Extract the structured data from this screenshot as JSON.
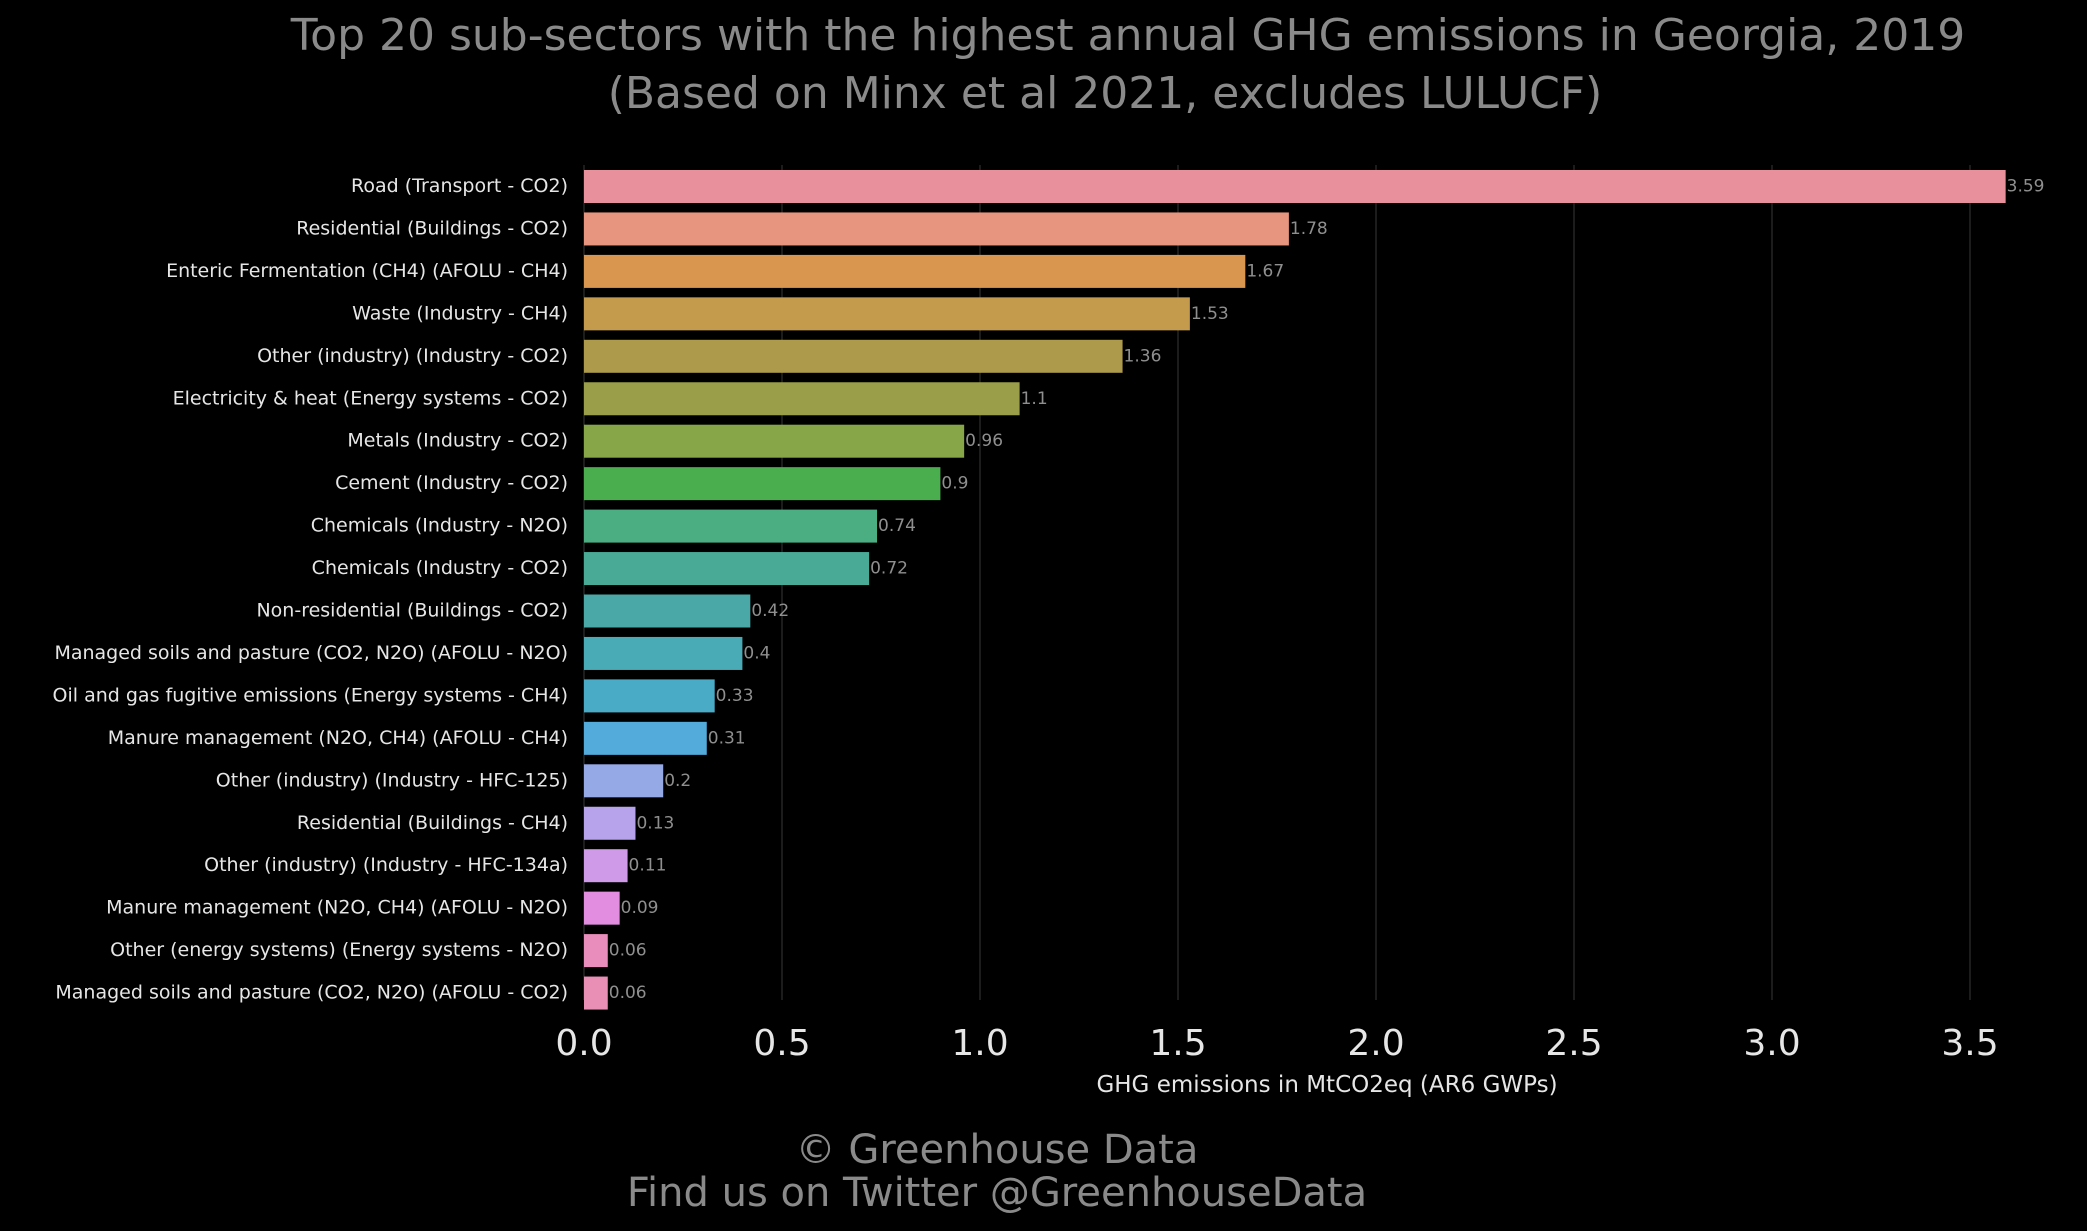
{
  "chart_data": {
    "type": "bar",
    "orientation": "horizontal",
    "title": "Top 20 sub-sectors with the highest annual GHG emissions in Georgia, 2019",
    "subtitle": "(Based on Minx et al 2021, excludes LULUCF)",
    "xlabel": "GHG emissions in MtCO2eq (AR6 GWPs)",
    "ylabel": "",
    "xlim": [
      0,
      3.6
    ],
    "xticks": [
      0.0,
      0.5,
      1.0,
      1.5,
      2.0,
      2.5,
      3.0,
      3.5
    ],
    "xtick_labels": [
      "0.0",
      "0.5",
      "1.0",
      "1.5",
      "2.0",
      "2.5",
      "3.0",
      "3.5"
    ],
    "grid": true,
    "categories": [
      "Road (Transport - CO2)",
      "Residential (Buildings - CO2)",
      "Enteric Fermentation (CH4) (AFOLU - CH4)",
      "Waste (Industry - CH4)",
      "Other (industry) (Industry - CO2)",
      "Electricity & heat (Energy systems - CO2)",
      "Metals (Industry - CO2)",
      "Cement (Industry - CO2)",
      "Chemicals (Industry - N2O)",
      "Chemicals (Industry - CO2)",
      "Non-residential (Buildings - CO2)",
      "Managed soils and pasture (CO2, N2O) (AFOLU - N2O)",
      "Oil and gas fugitive emissions (Energy systems - CH4)",
      "Manure management (N2O, CH4) (AFOLU - CH4)",
      "Other (industry) (Industry - HFC-125)",
      "Residential (Buildings - CH4)",
      "Other (industry) (Industry - HFC-134a)",
      "Manure management (N2O, CH4) (AFOLU - N2O)",
      "Other (energy systems) (Energy systems - N2O)",
      "Managed soils and pasture (CO2, N2O) (AFOLU - CO2)"
    ],
    "values": [
      3.59,
      1.78,
      1.67,
      1.53,
      1.36,
      1.1,
      0.96,
      0.9,
      0.74,
      0.72,
      0.42,
      0.4,
      0.33,
      0.31,
      0.2,
      0.13,
      0.11,
      0.09,
      0.06,
      0.06
    ],
    "value_labels": [
      "3.59",
      "1.78",
      "1.67",
      "1.53",
      "1.36",
      "1.1",
      "0.96",
      "0.9",
      "0.74",
      "0.72",
      "0.42",
      "0.4",
      "0.33",
      "0.31",
      "0.2",
      "0.13",
      "0.11",
      "0.09",
      "0.06",
      "0.06"
    ],
    "colors": [
      "#e8909b",
      "#e8957f",
      "#d9964f",
      "#c49a4c",
      "#ad9b4b",
      "#9a9e48",
      "#86a647",
      "#4aae4f",
      "#4aae82",
      "#49ab96",
      "#4aa9a6",
      "#49abb5",
      "#4aabc6",
      "#52abdb",
      "#95a9e6",
      "#b7a3ec",
      "#cf9be8",
      "#e28de0",
      "#e98ebc",
      "#e98fb6"
    ]
  },
  "footer": {
    "copyright": "© Greenhouse Data",
    "twitter": "Find us on Twitter @GreenhouseData"
  }
}
